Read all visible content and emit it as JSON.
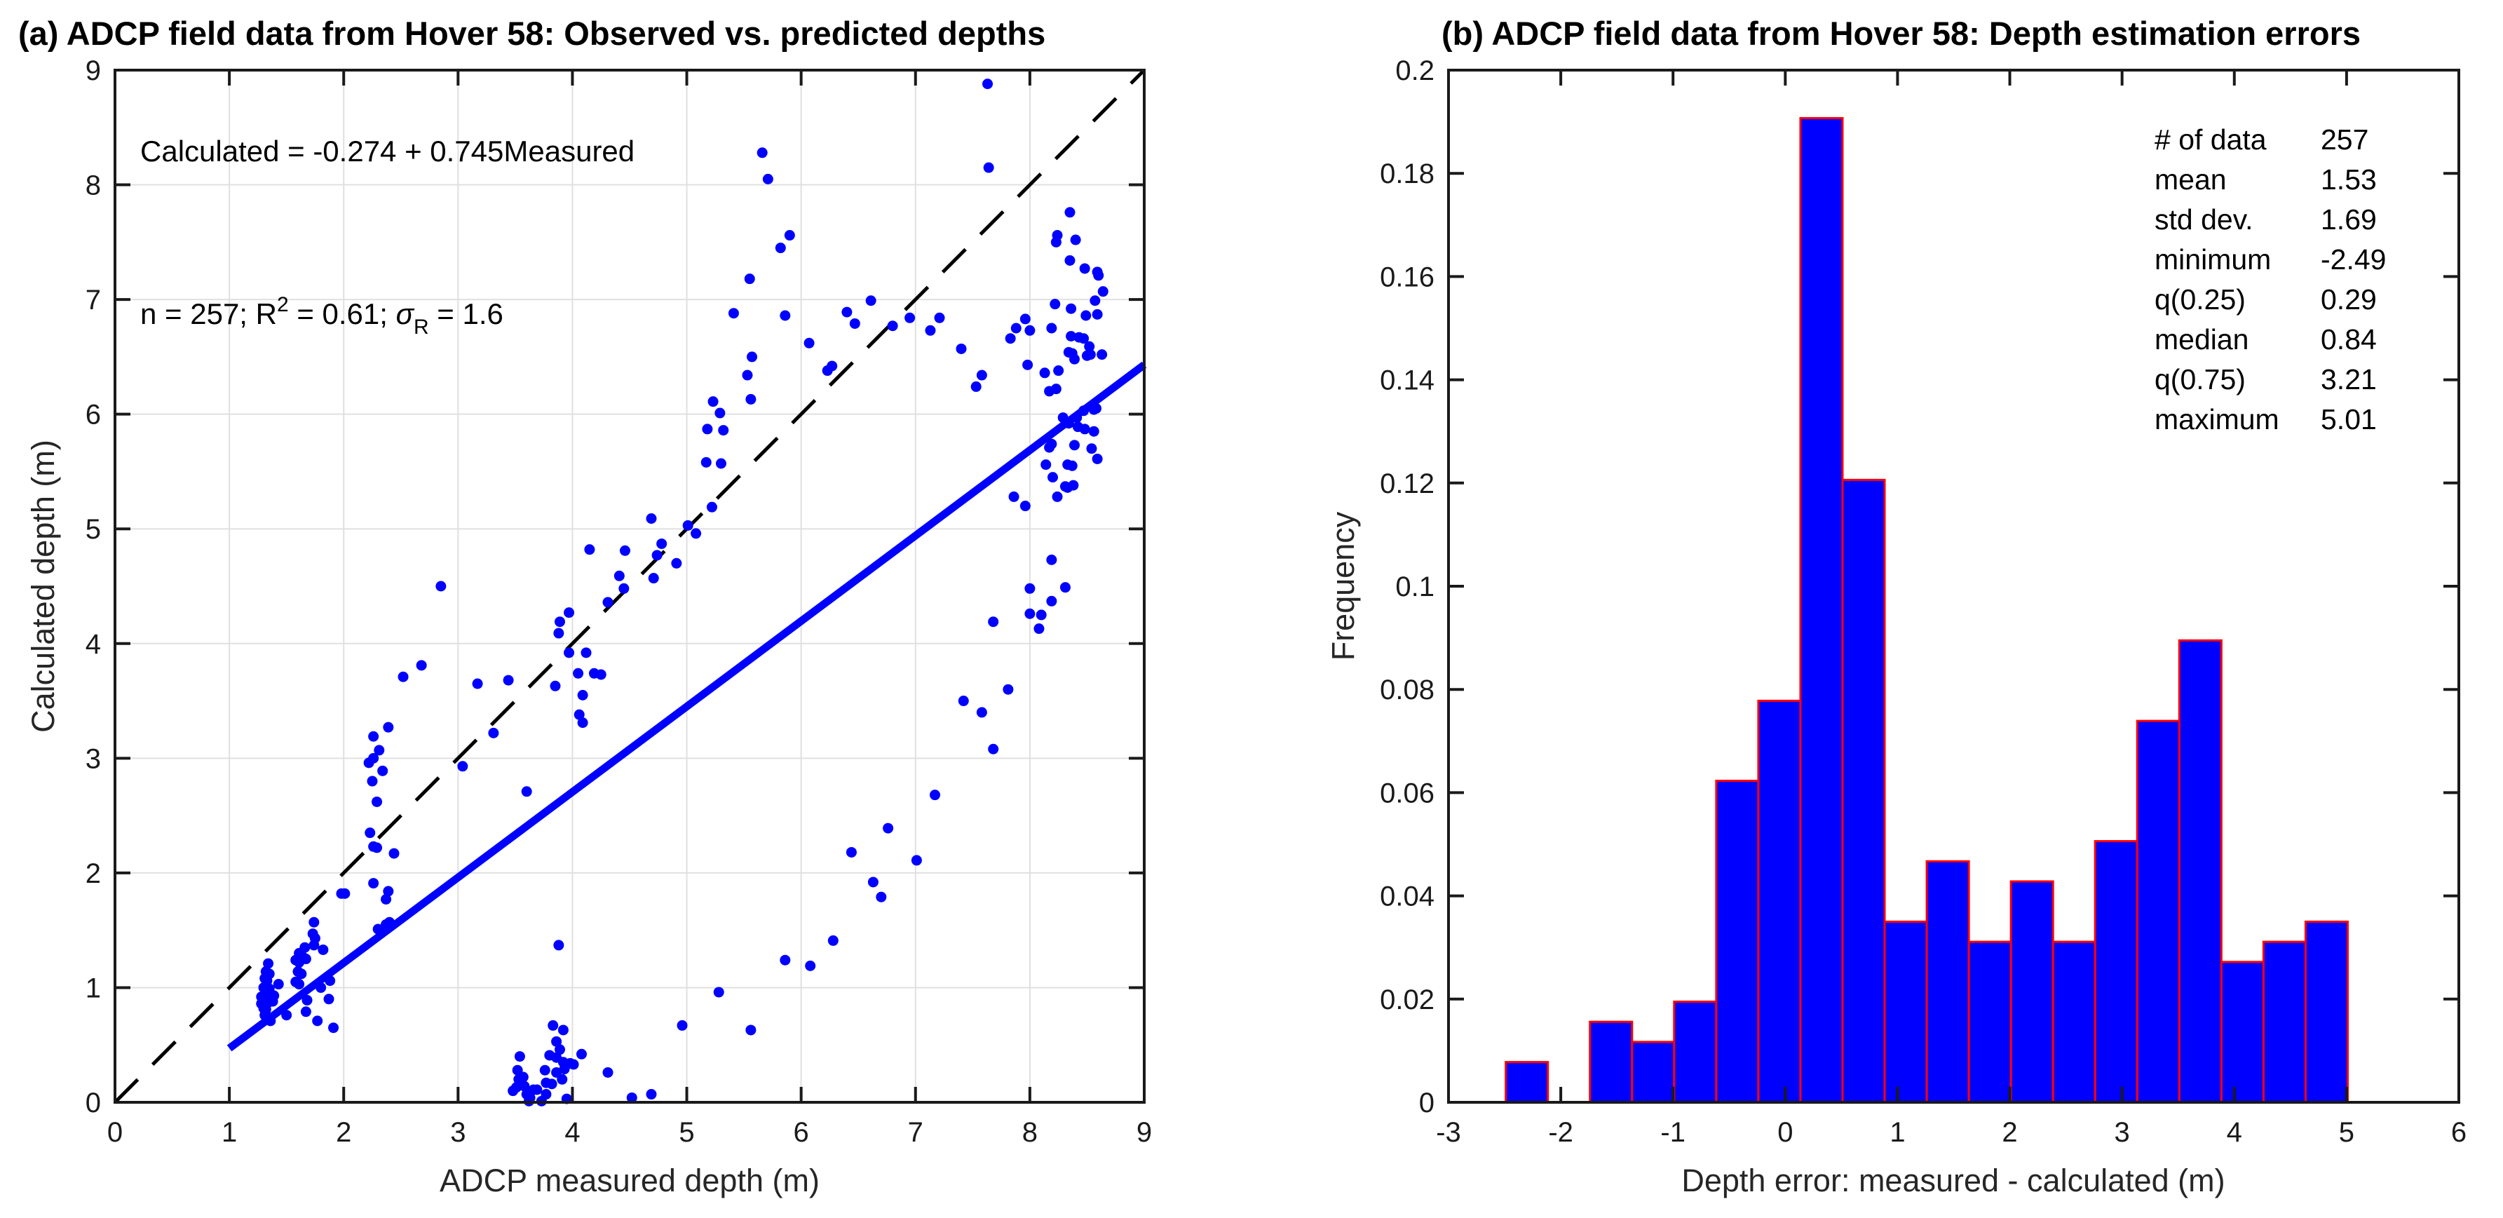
{
  "chart_data": [
    {
      "type": "scatter",
      "title": "(a) ADCP field data from Hover 58: Observed vs. predicted depths",
      "xlabel": "ADCP measured depth (m)",
      "ylabel": "Calculated depth (m)",
      "xlim": [
        0,
        9
      ],
      "ylim": [
        0,
        9
      ],
      "xticks": [
        0,
        1,
        2,
        3,
        4,
        5,
        6,
        7,
        8,
        9
      ],
      "yticks": [
        0,
        1,
        2,
        3,
        4,
        5,
        6,
        7,
        8,
        9
      ],
      "grid": true,
      "marker_color": "#0000FF",
      "grid_color": "#E0E0E0",
      "axis_color": "#1a1a1a",
      "n": 257,
      "fit_line": {
        "intercept": -0.274,
        "slope": 0.745,
        "x_range": [
          1,
          9
        ],
        "color": "#0000FF"
      },
      "identity_line": {
        "x_range": [
          0,
          9
        ],
        "style": "dashed",
        "color": "#000000"
      },
      "annotation": {
        "line1": "Calculated = -0.274 + 0.745Measured",
        "line2": {
          "pre": "n = 257; R",
          "sup": "2",
          "mid": " = 0.61; ",
          "sigma": "σ",
          "sub": "R",
          "post": " = 1.6"
        }
      },
      "points": [
        [
          1.34,
          1.21
        ],
        [
          1.32,
          1.14
        ],
        [
          1.35,
          1.12
        ],
        [
          1.31,
          1.08
        ],
        [
          1.33,
          1.06
        ],
        [
          1.3,
          1.0
        ],
        [
          1.32,
          0.98
        ],
        [
          1.35,
          0.99
        ],
        [
          1.28,
          0.92
        ],
        [
          1.31,
          0.9
        ],
        [
          1.33,
          0.93
        ],
        [
          1.28,
          0.86
        ],
        [
          1.31,
          0.86
        ],
        [
          1.34,
          0.87
        ],
        [
          1.3,
          0.82
        ],
        [
          1.32,
          0.81
        ],
        [
          1.31,
          0.76
        ],
        [
          1.33,
          0.75
        ],
        [
          1.36,
          0.71
        ],
        [
          1.38,
          0.88
        ],
        [
          1.39,
          0.93
        ],
        [
          1.43,
          1.03
        ],
        [
          1.61,
          1.3
        ],
        [
          1.64,
          1.27
        ],
        [
          1.58,
          1.24
        ],
        [
          1.61,
          1.22
        ],
        [
          1.67,
          1.25
        ],
        [
          1.6,
          1.14
        ],
        [
          1.63,
          1.12
        ],
        [
          1.58,
          1.05
        ],
        [
          1.61,
          1.03
        ],
        [
          1.66,
          1.35
        ],
        [
          1.74,
          1.37
        ],
        [
          1.75,
          1.43
        ],
        [
          1.73,
          1.47
        ],
        [
          1.82,
          1.33
        ],
        [
          1.88,
          1.06
        ],
        [
          1.8,
          1.0
        ],
        [
          1.68,
          0.89
        ],
        [
          1.87,
          0.9
        ],
        [
          1.67,
          0.79
        ],
        [
          1.5,
          0.76
        ],
        [
          1.77,
          0.71
        ],
        [
          1.91,
          0.65
        ],
        [
          1.74,
          1.57
        ],
        [
          1.98,
          1.82
        ],
        [
          2.01,
          1.82
        ],
        [
          2.26,
          3.19
        ],
        [
          2.31,
          3.07
        ],
        [
          2.26,
          3.0
        ],
        [
          2.34,
          2.89
        ],
        [
          2.22,
          2.96
        ],
        [
          2.25,
          2.8
        ],
        [
          2.29,
          2.62
        ],
        [
          2.23,
          2.35
        ],
        [
          2.26,
          2.23
        ],
        [
          2.29,
          2.22
        ],
        [
          2.44,
          2.17
        ],
        [
          2.26,
          1.91
        ],
        [
          2.39,
          1.84
        ],
        [
          2.37,
          1.77
        ],
        [
          2.4,
          1.57
        ],
        [
          2.37,
          1.55
        ],
        [
          2.3,
          1.51
        ],
        [
          2.39,
          3.27
        ],
        [
          2.68,
          3.81
        ],
        [
          2.52,
          3.71
        ],
        [
          2.85,
          4.5
        ],
        [
          3.04,
          2.93
        ],
        [
          3.17,
          3.65
        ],
        [
          3.31,
          3.22
        ],
        [
          3.44,
          3.68
        ],
        [
          3.6,
          2.71
        ],
        [
          3.85,
          3.63
        ],
        [
          3.89,
          4.19
        ],
        [
          3.97,
          4.27
        ],
        [
          3.88,
          4.09
        ],
        [
          3.97,
          3.92
        ],
        [
          4.12,
          3.92
        ],
        [
          4.05,
          3.74
        ],
        [
          4.09,
          3.55
        ],
        [
          4.06,
          3.38
        ],
        [
          4.09,
          3.31
        ],
        [
          4.15,
          4.82
        ],
        [
          4.46,
          4.81
        ],
        [
          4.19,
          3.74
        ],
        [
          4.25,
          3.73
        ],
        [
          4.31,
          4.36
        ],
        [
          4.41,
          4.59
        ],
        [
          4.45,
          4.48
        ],
        [
          3.88,
          1.37
        ],
        [
          3.83,
          0.67
        ],
        [
          3.92,
          0.63
        ],
        [
          3.86,
          0.53
        ],
        [
          3.89,
          0.46
        ],
        [
          3.54,
          0.4
        ],
        [
          3.8,
          0.41
        ],
        [
          3.86,
          0.39
        ],
        [
          4.08,
          0.42
        ],
        [
          3.92,
          0.35
        ],
        [
          3.98,
          0.34
        ],
        [
          4.01,
          0.33
        ],
        [
          3.52,
          0.28
        ],
        [
          3.76,
          0.28
        ],
        [
          3.86,
          0.26
        ],
        [
          3.93,
          0.29
        ],
        [
          4.31,
          0.26
        ],
        [
          3.53,
          0.2
        ],
        [
          3.57,
          0.22
        ],
        [
          3.77,
          0.17
        ],
        [
          3.82,
          0.16
        ],
        [
          3.91,
          0.2
        ],
        [
          3.48,
          0.1
        ],
        [
          3.51,
          0.13
        ],
        [
          3.58,
          0.14
        ],
        [
          3.66,
          0.11
        ],
        [
          3.69,
          0.11
        ],
        [
          3.77,
          0.07
        ],
        [
          3.6,
          0.07
        ],
        [
          3.63,
          0.04
        ],
        [
          3.62,
          0.01
        ],
        [
          3.73,
          0.01
        ],
        [
          3.95,
          0.03
        ],
        [
          4.52,
          0.04
        ],
        [
          4.69,
          0.07
        ],
        [
          5.17,
          5.58
        ],
        [
          5.3,
          5.57
        ],
        [
          5.22,
          5.19
        ],
        [
          5.01,
          5.03
        ],
        [
          5.08,
          4.96
        ],
        [
          4.78,
          4.87
        ],
        [
          4.74,
          4.77
        ],
        [
          4.91,
          4.7
        ],
        [
          4.71,
          4.57
        ],
        [
          4.69,
          5.09
        ],
        [
          5.41,
          6.88
        ],
        [
          5.86,
          6.86
        ],
        [
          5.9,
          7.56
        ],
        [
          5.82,
          7.45
        ],
        [
          5.55,
          7.18
        ],
        [
          5.66,
          8.28
        ],
        [
          5.71,
          8.05
        ],
        [
          6.61,
          6.99
        ],
        [
          6.4,
          6.89
        ],
        [
          6.47,
          6.79
        ],
        [
          6.07,
          6.62
        ],
        [
          6.23,
          6.38
        ],
        [
          6.27,
          6.42
        ],
        [
          5.57,
          6.5
        ],
        [
          5.53,
          6.34
        ],
        [
          5.56,
          6.13
        ],
        [
          5.23,
          6.11
        ],
        [
          5.29,
          6.01
        ],
        [
          5.18,
          5.87
        ],
        [
          5.32,
          5.86
        ],
        [
          6.95,
          6.84
        ],
        [
          6.8,
          6.77
        ],
        [
          7.21,
          6.84
        ],
        [
          7.13,
          6.73
        ],
        [
          7.4,
          6.57
        ],
        [
          7.58,
          6.34
        ],
        [
          7.63,
          8.88
        ],
        [
          7.64,
          8.15
        ],
        [
          7.88,
          6.75
        ],
        [
          8.35,
          7.76
        ],
        [
          8.24,
          7.56
        ],
        [
          8.23,
          7.5
        ],
        [
          8.4,
          7.52
        ],
        [
          8.35,
          7.34
        ],
        [
          8.48,
          7.27
        ],
        [
          8.59,
          7.24
        ],
        [
          8.6,
          7.21
        ],
        [
          8.64,
          7.07
        ],
        [
          8.57,
          6.99
        ],
        [
          8.22,
          6.96
        ],
        [
          8.36,
          6.92
        ],
        [
          8.49,
          6.86
        ],
        [
          8.59,
          6.87
        ],
        [
          7.96,
          6.83
        ],
        [
          8.0,
          6.73
        ],
        [
          8.19,
          6.75
        ],
        [
          7.83,
          6.66
        ],
        [
          8.36,
          6.68
        ],
        [
          8.43,
          6.67
        ],
        [
          8.47,
          6.66
        ],
        [
          8.52,
          6.59
        ],
        [
          8.53,
          6.52
        ],
        [
          8.5,
          6.51
        ],
        [
          8.34,
          6.54
        ],
        [
          8.37,
          6.53
        ],
        [
          8.39,
          6.48
        ],
        [
          8.63,
          6.52
        ],
        [
          7.98,
          6.43
        ],
        [
          8.13,
          6.36
        ],
        [
          8.25,
          6.38
        ],
        [
          7.53,
          6.24
        ],
        [
          8.17,
          6.2
        ],
        [
          8.23,
          6.22
        ],
        [
          8.29,
          5.97
        ],
        [
          8.41,
          5.97
        ],
        [
          8.47,
          6.03
        ],
        [
          8.56,
          6.04
        ],
        [
          8.58,
          6.05
        ],
        [
          8.34,
          5.92
        ],
        [
          8.42,
          5.89
        ],
        [
          8.48,
          5.87
        ],
        [
          8.56,
          5.85
        ],
        [
          8.19,
          5.74
        ],
        [
          8.17,
          5.71
        ],
        [
          8.39,
          5.73
        ],
        [
          8.54,
          5.7
        ],
        [
          8.59,
          5.61
        ],
        [
          8.14,
          5.56
        ],
        [
          8.33,
          5.56
        ],
        [
          8.37,
          5.55
        ],
        [
          8.2,
          5.45
        ],
        [
          8.31,
          5.37
        ],
        [
          8.33,
          5.36
        ],
        [
          8.38,
          5.38
        ],
        [
          8.24,
          5.28
        ],
        [
          7.86,
          5.28
        ],
        [
          7.96,
          5.2
        ],
        [
          8.19,
          4.73
        ],
        [
          8.0,
          4.48
        ],
        [
          8.31,
          4.49
        ],
        [
          8.19,
          4.37
        ],
        [
          8.0,
          4.26
        ],
        [
          8.1,
          4.25
        ],
        [
          7.68,
          4.19
        ],
        [
          8.08,
          4.13
        ],
        [
          7.81,
          3.6
        ],
        [
          7.42,
          3.5
        ],
        [
          7.58,
          3.4
        ],
        [
          7.68,
          3.08
        ],
        [
          7.17,
          2.68
        ],
        [
          7.01,
          2.11
        ],
        [
          6.76,
          2.39
        ],
        [
          6.44,
          2.18
        ],
        [
          6.63,
          1.92
        ],
        [
          6.7,
          1.79
        ],
        [
          6.28,
          1.41
        ],
        [
          5.86,
          1.24
        ],
        [
          6.08,
          1.19
        ],
        [
          5.28,
          0.96
        ],
        [
          4.96,
          0.67
        ],
        [
          5.56,
          0.63
        ]
      ]
    },
    {
      "type": "bar",
      "title": "(b) ADCP field data from Hover 58: Depth estimation errors",
      "xlabel": "Depth error: measured - calculated (m)",
      "ylabel": "Frequency",
      "xlim": [
        -3,
        6
      ],
      "ylim": [
        0,
        0.2
      ],
      "xticks": [
        -3,
        -2,
        -1,
        0,
        1,
        2,
        3,
        4,
        5,
        6
      ],
      "yticks": [
        0,
        0.02,
        0.04,
        0.06,
        0.08,
        0.1,
        0.12,
        0.14,
        0.16,
        0.18,
        0.2
      ],
      "ytick_labels": [
        "0",
        "0.02",
        "0.04",
        "0.06",
        "0.08",
        "0.1",
        "0.12",
        "0.14",
        "0.16",
        "0.18",
        "0.2"
      ],
      "grid": false,
      "bar_color": "#0000FF",
      "bar_edge_color": "#FF0000",
      "axis_color": "#1a1a1a",
      "bins": {
        "start": -2.49,
        "width": 0.375,
        "frequencies": [
          0.0078,
          0,
          0.0156,
          0.0117,
          0.0195,
          0.0623,
          0.0778,
          0.1907,
          0.1206,
          0.035,
          0.0467,
          0.0311,
          0.0428,
          0.0311,
          0.0506,
          0.0739,
          0.0895,
          0.0272,
          0.0311,
          0.035
        ]
      },
      "stats": {
        "rows": [
          {
            "label": "# of data",
            "value": "257"
          },
          {
            "label": "mean",
            "value": "1.53"
          },
          {
            "label": "std dev.",
            "value": "1.69"
          },
          {
            "label": "minimum",
            "value": "-2.49"
          },
          {
            "label": "q(0.25)",
            "value": "0.29"
          },
          {
            "label": "median",
            "value": "0.84"
          },
          {
            "label": "q(0.75)",
            "value": "3.21"
          },
          {
            "label": "maximum",
            "value": "5.01"
          }
        ]
      }
    }
  ]
}
